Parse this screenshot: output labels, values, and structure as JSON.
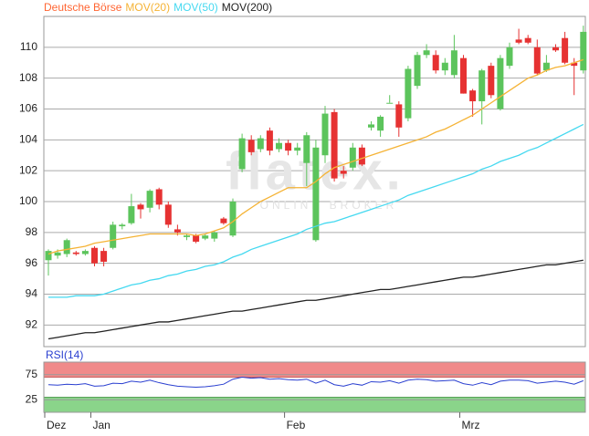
{
  "chart_data": [
    {
      "type": "candlestick",
      "legend": "top-left",
      "watermark": "flatex.",
      "watermark_sub": "ONLINE BROKER",
      "ylim": [
        90.6,
        112
      ],
      "yticks": [
        92,
        94,
        96,
        98,
        100,
        102,
        104,
        106,
        108,
        110
      ],
      "grid": true,
      "series": [
        {
          "name": "Deutsche Börse",
          "color": "#ff6633",
          "up_color": "#5cc45c",
          "down_color": "#e63232",
          "open": [
            96.2,
            96.5,
            96.6,
            96.7,
            96.6,
            97.0,
            96.8,
            97.0,
            98.4,
            98.6,
            99.8,
            99.6,
            100.8,
            99.8,
            98.2,
            97.7,
            97.8,
            97.6,
            97.6,
            98.9,
            97.8,
            102.1,
            104.0,
            103.4,
            104.6,
            103.4,
            103.8,
            103.3,
            102.5,
            97.5,
            103.0,
            105.8,
            102.0,
            102.2,
            103.5,
            104.8,
            104.6,
            106.4,
            106.3,
            105.4,
            107.5,
            109.5,
            109.5,
            108.5,
            108.2,
            109.3,
            107.2,
            106.5,
            108.8,
            106.0,
            108.8,
            110.5,
            110.6,
            110.0,
            108.5,
            110.0,
            110.6,
            109.0,
            108.5
          ],
          "high": [
            96.9,
            96.9,
            97.6,
            96.8,
            96.9,
            97.1,
            97.0,
            98.7,
            98.6,
            100.5,
            99.9,
            100.8,
            100.9,
            100.0,
            98.5,
            97.9,
            97.9,
            97.9,
            98.1,
            99.0,
            100.2,
            104.4,
            104.3,
            104.3,
            104.8,
            104.1,
            104.0,
            103.8,
            104.5,
            104.0,
            106.2,
            106.0,
            102.3,
            103.8,
            103.7,
            105.2,
            105.6,
            106.9,
            106.5,
            108.8,
            109.7,
            110.2,
            109.8,
            109.3,
            110.8,
            109.5,
            107.3,
            108.6,
            109.0,
            109.5,
            110.3,
            111.2,
            110.8,
            110.5,
            109.5,
            110.2,
            111.0,
            109.3,
            111.4
          ],
          "low": [
            95.2,
            96.3,
            96.4,
            96.5,
            96.5,
            95.8,
            95.8,
            96.9,
            98.2,
            98.5,
            98.9,
            99.3,
            99.5,
            98.3,
            97.8,
            97.5,
            97.3,
            97.5,
            97.4,
            98.5,
            97.7,
            101.9,
            103.0,
            103.2,
            103.0,
            103.2,
            103.0,
            103.0,
            101.0,
            97.4,
            102.5,
            101.3,
            101.5,
            102.0,
            102.3,
            104.6,
            104.2,
            106.4,
            104.2,
            105.2,
            107.3,
            109.3,
            108.3,
            108.2,
            108.0,
            107.0,
            105.5,
            105.0,
            106.7,
            105.9,
            108.6,
            110.2,
            110.2,
            108.2,
            108.4,
            109.7,
            108.9,
            106.9,
            108.3
          ],
          "close": [
            96.8,
            96.7,
            97.5,
            96.6,
            96.8,
            96.0,
            96.1,
            98.5,
            98.5,
            99.7,
            99.5,
            100.7,
            99.8,
            98.5,
            98.0,
            97.8,
            97.4,
            97.8,
            98.0,
            98.6,
            100.0,
            104.1,
            103.2,
            104.1,
            103.3,
            103.8,
            103.3,
            103.5,
            104.3,
            103.5,
            105.7,
            101.5,
            101.8,
            103.5,
            102.4,
            105.0,
            105.5,
            106.4,
            104.8,
            108.6,
            109.5,
            109.8,
            108.5,
            109.0,
            109.8,
            107.0,
            106.5,
            108.5,
            106.9,
            109.3,
            110.0,
            110.3,
            110.3,
            108.3,
            109.0,
            109.8,
            109.0,
            108.8,
            111.0
          ]
        },
        {
          "name": "MOV(20)",
          "color": "#f5b335",
          "values": [
            96.6,
            96.8,
            96.9,
            97.0,
            97.1,
            97.3,
            97.4,
            97.5,
            97.6,
            97.7,
            97.8,
            97.9,
            97.9,
            97.9,
            97.9,
            97.9,
            97.8,
            97.9,
            98.1,
            98.3,
            98.7,
            99.2,
            99.6,
            100.0,
            100.3,
            100.6,
            100.9,
            100.9,
            100.9,
            101.3,
            101.8,
            102.2,
            102.4,
            102.6,
            102.8,
            103.0,
            103.2,
            103.4,
            103.6,
            103.8,
            104.0,
            104.2,
            104.5,
            104.7,
            105.0,
            105.3,
            105.6,
            106.0,
            106.4,
            106.8,
            107.2,
            107.6,
            108.0,
            108.2,
            108.5,
            108.7,
            108.8,
            109.0,
            109.2
          ]
        },
        {
          "name": "MOV(50)",
          "color": "#45d9f0",
          "values": [
            93.8,
            93.8,
            93.8,
            93.9,
            93.9,
            93.9,
            94.0,
            94.2,
            94.4,
            94.6,
            94.7,
            94.9,
            95.0,
            95.2,
            95.3,
            95.5,
            95.6,
            95.8,
            95.9,
            96.1,
            96.4,
            96.6,
            96.9,
            97.1,
            97.3,
            97.5,
            97.7,
            97.9,
            98.2,
            98.4,
            98.6,
            98.7,
            98.9,
            99.1,
            99.3,
            99.5,
            99.7,
            99.9,
            100.1,
            100.4,
            100.6,
            100.8,
            101.0,
            101.2,
            101.4,
            101.6,
            101.8,
            102.1,
            102.3,
            102.6,
            102.8,
            103.0,
            103.3,
            103.5,
            103.8,
            104.1,
            104.4,
            104.7,
            105.0
          ]
        },
        {
          "name": "MOV(200)",
          "color": "#222222",
          "values": [
            91.1,
            91.2,
            91.3,
            91.4,
            91.5,
            91.5,
            91.6,
            91.7,
            91.8,
            91.9,
            92.0,
            92.1,
            92.2,
            92.2,
            92.3,
            92.4,
            92.5,
            92.6,
            92.7,
            92.8,
            92.9,
            92.9,
            93.0,
            93.1,
            93.2,
            93.3,
            93.4,
            93.5,
            93.6,
            93.6,
            93.7,
            93.8,
            93.9,
            94.0,
            94.1,
            94.2,
            94.3,
            94.3,
            94.4,
            94.5,
            94.6,
            94.7,
            94.8,
            94.9,
            95.0,
            95.1,
            95.1,
            95.2,
            95.3,
            95.4,
            95.5,
            95.6,
            95.7,
            95.8,
            95.9,
            95.9,
            96.0,
            96.1,
            96.2
          ]
        }
      ]
    },
    {
      "type": "line",
      "title": "RSI(14)",
      "ylim": [
        0,
        100
      ],
      "yticks": [
        25,
        75
      ],
      "bands": [
        {
          "from": 70,
          "to": 100,
          "color": "#f08a8a"
        },
        {
          "from": 0,
          "to": 30,
          "color": "#8ad48a"
        }
      ],
      "categories": [
        "Dez",
        null,
        null,
        null,
        null,
        "Jan",
        null,
        null,
        null,
        null,
        null,
        null,
        null,
        null,
        null,
        null,
        null,
        null,
        null,
        null,
        null,
        null,
        null,
        null,
        null,
        null,
        "Feb",
        null,
        null,
        null,
        null,
        null,
        null,
        null,
        null,
        null,
        null,
        null,
        null,
        null,
        null,
        null,
        null,
        null,
        null,
        "Mrz",
        null,
        null,
        null,
        null,
        null,
        null,
        null,
        null,
        null,
        null,
        null,
        null,
        null
      ],
      "series": [
        {
          "name": "RSI(14)",
          "color": "#2a3fd0",
          "values": [
            55,
            54,
            56,
            55,
            57,
            52,
            53,
            58,
            57,
            62,
            60,
            64,
            59,
            55,
            52,
            51,
            50,
            51,
            53,
            56,
            66,
            70,
            68,
            69,
            66,
            67,
            65,
            64,
            66,
            58,
            64,
            55,
            52,
            57,
            54,
            61,
            60,
            63,
            58,
            64,
            66,
            65,
            62,
            63,
            64,
            57,
            54,
            59,
            55,
            62,
            64,
            64,
            63,
            58,
            60,
            62,
            60,
            56,
            63
          ]
        }
      ]
    }
  ]
}
